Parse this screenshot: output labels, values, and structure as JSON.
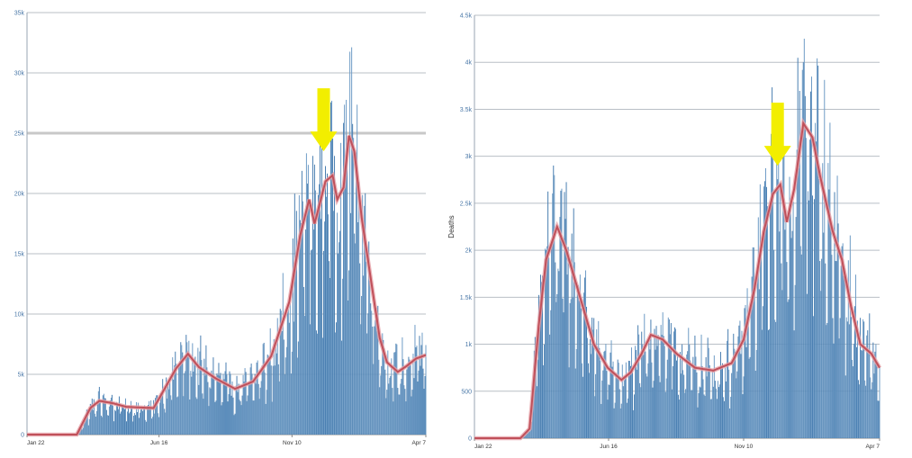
{
  "chart_data": [
    {
      "type": "bar",
      "title": "",
      "xlabel": "",
      "ylabel": "",
      "ylim": [
        0,
        35000
      ],
      "y_ticks": [
        "0",
        "5k",
        "10k",
        "15k",
        "20k",
        "25k",
        "30k",
        "35k"
      ],
      "y_tick_values": [
        0,
        5000,
        10000,
        15000,
        20000,
        25000,
        30000,
        35000
      ],
      "x_ticks": [
        "Jan 22",
        "Jun 16",
        "Nov 10",
        "Apr 7"
      ],
      "x_tick_days": [
        0,
        146,
        293,
        441
      ],
      "days": 442,
      "grid": true,
      "highlighted_gridline": 25000,
      "bar_color": "#4a7fb1",
      "line_color": "#c0505a",
      "annotation": {
        "type": "arrow",
        "color": "#f2ee00",
        "day": 328,
        "value": 23500,
        "direction": "down"
      },
      "series": [
        {
          "values_description": "daily bars",
          "profile": [
            [
              0,
              0
            ],
            [
              55,
              0
            ],
            [
              70,
              2200
            ],
            [
              80,
              2800
            ],
            [
              95,
              2600
            ],
            [
              110,
              2300
            ],
            [
              140,
              2200
            ],
            [
              165,
              5500
            ],
            [
              178,
              6700
            ],
            [
              190,
              5600
            ],
            [
              210,
              4600
            ],
            [
              230,
              3800
            ],
            [
              250,
              4400
            ],
            [
              270,
              6500
            ],
            [
              290,
              11000
            ],
            [
              302,
              16500
            ],
            [
              312,
              19500
            ],
            [
              318,
              17500
            ],
            [
              330,
              21000
            ],
            [
              338,
              21500
            ],
            [
              343,
              19500
            ],
            [
              350,
              20500
            ],
            [
              356,
              24800
            ],
            [
              362,
              23500
            ],
            [
              370,
              18000
            ],
            [
              380,
              13000
            ],
            [
              390,
              8000
            ],
            [
              398,
              6000
            ],
            [
              410,
              5200
            ],
            [
              420,
              5700
            ],
            [
              430,
              6300
            ],
            [
              441,
              6600
            ]
          ]
        },
        {
          "values_description": "7-day average line",
          "profile": [
            [
              0,
              0
            ],
            [
              55,
              0
            ],
            [
              70,
              2200
            ],
            [
              80,
              2800
            ],
            [
              95,
              2600
            ],
            [
              110,
              2300
            ],
            [
              140,
              2200
            ],
            [
              165,
              5500
            ],
            [
              178,
              6700
            ],
            [
              190,
              5600
            ],
            [
              210,
              4600
            ],
            [
              230,
              3800
            ],
            [
              250,
              4400
            ],
            [
              270,
              6500
            ],
            [
              290,
              11000
            ],
            [
              302,
              16500
            ],
            [
              312,
              19500
            ],
            [
              318,
              17500
            ],
            [
              330,
              21000
            ],
            [
              338,
              21500
            ],
            [
              343,
              19500
            ],
            [
              350,
              20500
            ],
            [
              356,
              24800
            ],
            [
              362,
              23500
            ],
            [
              370,
              18000
            ],
            [
              380,
              13000
            ],
            [
              390,
              8000
            ],
            [
              398,
              6000
            ],
            [
              410,
              5200
            ],
            [
              420,
              5700
            ],
            [
              430,
              6300
            ],
            [
              441,
              6600
            ]
          ]
        }
      ]
    },
    {
      "type": "bar",
      "title": "",
      "xlabel": "",
      "ylabel": "Deaths",
      "ylim": [
        0,
        4500
      ],
      "y_ticks": [
        "0",
        "500",
        "1k",
        "1.5k",
        "2k",
        "2.5k",
        "3k",
        "3.5k",
        "4k",
        "4.5k"
      ],
      "y_tick_values": [
        0,
        500,
        1000,
        1500,
        2000,
        2500,
        3000,
        3500,
        4000,
        4500
      ],
      "x_ticks": [
        "Jan 22",
        "Jun 16",
        "Nov 10",
        "Apr 7"
      ],
      "x_tick_days": [
        0,
        146,
        293,
        441
      ],
      "days": 442,
      "grid": true,
      "bar_color": "#4a7fb1",
      "line_color": "#c0505a",
      "annotation": {
        "type": "arrow",
        "color": "#f2ee00",
        "day": 330,
        "value": 2900,
        "direction": "down"
      },
      "series": [
        {
          "values_description": "daily bars",
          "profile": [
            [
              0,
              0
            ],
            [
              50,
              0
            ],
            [
              60,
              100
            ],
            [
              70,
              1200
            ],
            [
              78,
              1900
            ],
            [
              90,
              2250
            ],
            [
              100,
              2000
            ],
            [
              115,
              1500
            ],
            [
              130,
              1000
            ],
            [
              145,
              750
            ],
            [
              160,
              620
            ],
            [
              170,
              700
            ],
            [
              182,
              900
            ],
            [
              192,
              1100
            ],
            [
              205,
              1050
            ],
            [
              220,
              900
            ],
            [
              240,
              750
            ],
            [
              260,
              720
            ],
            [
              280,
              800
            ],
            [
              293,
              1050
            ],
            [
              305,
              1600
            ],
            [
              315,
              2200
            ],
            [
              325,
              2600
            ],
            [
              333,
              2700
            ],
            [
              340,
              2300
            ],
            [
              348,
              2650
            ],
            [
              358,
              3350
            ],
            [
              368,
              3200
            ],
            [
              376,
              2800
            ],
            [
              390,
              2200
            ],
            [
              400,
              1900
            ],
            [
              410,
              1400
            ],
            [
              420,
              1000
            ],
            [
              432,
              900
            ],
            [
              441,
              750
            ]
          ]
        },
        {
          "values_description": "7-day average line",
          "profile": [
            [
              0,
              0
            ],
            [
              50,
              0
            ],
            [
              60,
              100
            ],
            [
              70,
              1200
            ],
            [
              78,
              1900
            ],
            [
              90,
              2250
            ],
            [
              100,
              2000
            ],
            [
              115,
              1500
            ],
            [
              130,
              1000
            ],
            [
              145,
              750
            ],
            [
              160,
              620
            ],
            [
              170,
              700
            ],
            [
              182,
              900
            ],
            [
              192,
              1100
            ],
            [
              205,
              1050
            ],
            [
              220,
              900
            ],
            [
              240,
              750
            ],
            [
              260,
              720
            ],
            [
              280,
              800
            ],
            [
              293,
              1050
            ],
            [
              305,
              1600
            ],
            [
              315,
              2200
            ],
            [
              325,
              2600
            ],
            [
              333,
              2700
            ],
            [
              340,
              2300
            ],
            [
              348,
              2650
            ],
            [
              358,
              3350
            ],
            [
              368,
              3200
            ],
            [
              376,
              2800
            ],
            [
              390,
              2200
            ],
            [
              400,
              1900
            ],
            [
              410,
              1400
            ],
            [
              420,
              1000
            ],
            [
              432,
              900
            ],
            [
              441,
              750
            ]
          ]
        }
      ]
    }
  ]
}
